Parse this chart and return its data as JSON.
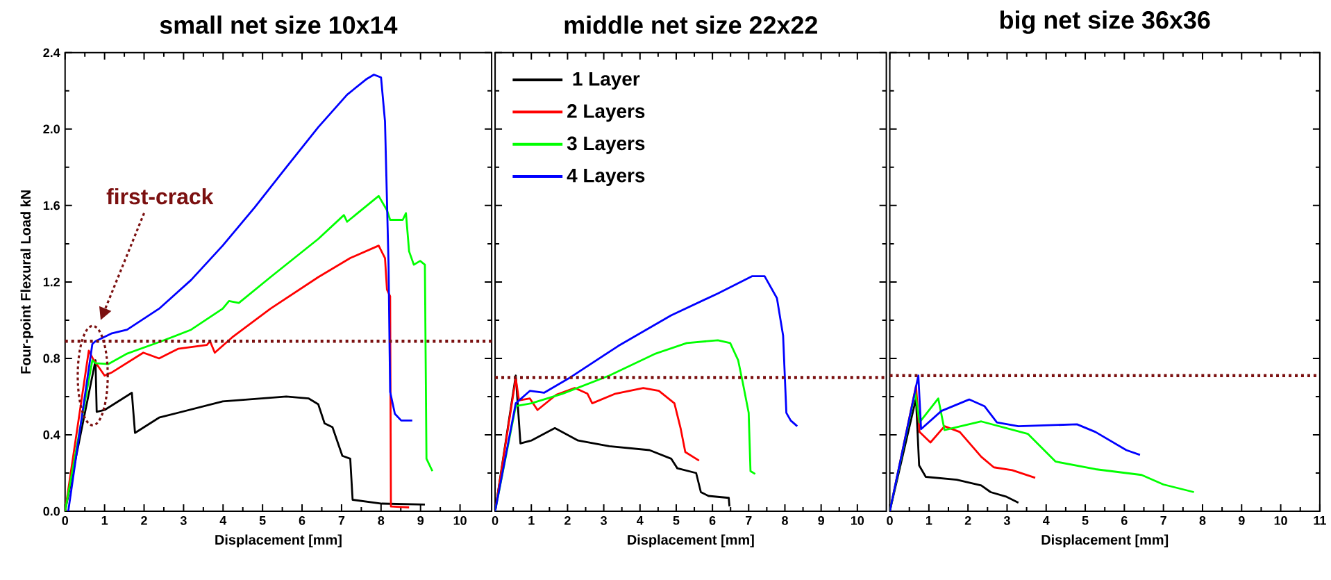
{
  "chart_data": [
    {
      "type": "line",
      "title": "small net size 10x14",
      "xlabel": "Displacement [mm]",
      "ylabel": "Four-point Flexural Load     kN",
      "marker": "none",
      "xlim": [
        0,
        10.8
      ],
      "ylim": [
        0,
        2.4
      ],
      "xticks": [
        0,
        1,
        2,
        3,
        4,
        5,
        6,
        7,
        8,
        9,
        10
      ],
      "yticks": [
        {
          "value": 0,
          "label": "0.0"
        },
        {
          "value": 0.4,
          "label": "0.4"
        },
        {
          "value": 0.8,
          "label": "0.8"
        },
        {
          "value": 1.2,
          "label": "1.2"
        },
        {
          "value": 1.6,
          "label": "1.6"
        },
        {
          "value": 2.0,
          "label": "2.0"
        },
        {
          "value": 2.4,
          "label": "2.4"
        }
      ],
      "ref_lines": [
        {
          "axis": "y",
          "value": 0.89,
          "color": "#7b1010",
          "line_style": "dotted"
        }
      ],
      "annotations": [
        "first-crack"
      ],
      "series": [
        {
          "color": "#000000",
          "x": [
            0,
            0.77,
            0.8,
            1.0,
            1.69,
            1.77,
            2.38,
            3.99,
            5.6,
            6.17,
            6.41,
            6.57,
            6.77,
            7.02,
            7.22,
            7.28,
            8.02,
            9.11
          ],
          "values": [
            0,
            0.79,
            0.52,
            0.53,
            0.62,
            0.41,
            0.49,
            0.575,
            0.6,
            0.59,
            0.56,
            0.46,
            0.44,
            0.29,
            0.275,
            0.06,
            0.04,
            0.035
          ]
        },
        {
          "color": "#ff0000",
          "x": [
            0,
            0.6,
            0.7,
            1.0,
            1.17,
            1.98,
            2.38,
            2.86,
            3.59,
            3.67,
            3.79,
            4.23,
            5.2,
            6.41,
            7.22,
            7.94,
            8.1,
            8.15,
            8.23,
            8.25,
            8.71
          ],
          "values": [
            0,
            0.84,
            0.8,
            0.71,
            0.725,
            0.83,
            0.8,
            0.85,
            0.87,
            0.89,
            0.83,
            0.91,
            1.06,
            1.225,
            1.325,
            1.39,
            1.325,
            1.16,
            1.125,
            0.025,
            0.02
          ]
        },
        {
          "color": "#00ff00",
          "x": [
            0,
            0.69,
            0.77,
            1.09,
            1.57,
            2.38,
            3.19,
            3.99,
            4.15,
            4.4,
            5.2,
            6.41,
            7.06,
            7.14,
            7.94,
            8.15,
            8.23,
            8.55,
            8.63,
            8.71,
            8.83,
            8.99,
            9.11,
            9.15,
            9.3
          ],
          "values": [
            0,
            0.79,
            0.775,
            0.77,
            0.825,
            0.885,
            0.95,
            1.06,
            1.1,
            1.09,
            1.225,
            1.425,
            1.55,
            1.515,
            1.65,
            1.575,
            1.525,
            1.525,
            1.56,
            1.36,
            1.29,
            1.31,
            1.29,
            0.275,
            0.21
          ]
        },
        {
          "color": "#0000ff",
          "x": [
            0.08,
            0.69,
            0.77,
            1.17,
            1.57,
            2.38,
            3.19,
            3.99,
            4.8,
            5.6,
            6.41,
            7.14,
            7.62,
            7.82,
            8.0,
            8.1,
            8.19,
            8.23,
            8.35,
            8.51,
            8.79
          ],
          "values": [
            0,
            0.875,
            0.89,
            0.93,
            0.95,
            1.06,
            1.21,
            1.39,
            1.59,
            1.8,
            2.01,
            2.18,
            2.26,
            2.285,
            2.27,
            2.04,
            1.29,
            0.625,
            0.51,
            0.475,
            0.475
          ]
        }
      ]
    },
    {
      "type": "line",
      "title": "middle net size 22x22",
      "xlabel": "Displacement [mm]",
      "marker": "none",
      "legend": "top left",
      "tick_labels": "x",
      "xlim": [
        0,
        10.8
      ],
      "ylim": [
        0,
        2.4
      ],
      "xticks": [
        0,
        1,
        2,
        3,
        4,
        5,
        6,
        7,
        8,
        9,
        10
      ],
      "yticks": [
        {
          "value": 0,
          "label": null
        },
        {
          "value": 0.4,
          "label": null
        },
        {
          "value": 0.8,
          "label": null
        },
        {
          "value": 1.2,
          "label": null
        },
        {
          "value": 1.6,
          "label": null
        },
        {
          "value": 2.0,
          "label": null
        },
        {
          "value": 2.4,
          "label": null
        }
      ],
      "ref_lines": [
        {
          "axis": "y",
          "value": 0.7,
          "color": "#7b1010",
          "line_style": "dotted"
        }
      ],
      "series": [
        {
          "name": "1 Layer",
          "color": "#000000",
          "x": [
            0,
            0.57,
            0.7,
            1.0,
            1.65,
            2.29,
            3.15,
            4.26,
            4.86,
            5.03,
            5.55,
            5.68,
            5.89,
            6.45,
            6.47
          ],
          "values": [
            0,
            0.71,
            0.355,
            0.37,
            0.435,
            0.37,
            0.34,
            0.32,
            0.275,
            0.225,
            0.2,
            0.1,
            0.08,
            0.07,
            0.025
          ]
        },
        {
          "name": "2 Layers",
          "color": "#ff0000",
          "x": [
            0,
            0.57,
            0.66,
            0.96,
            1.17,
            1.69,
            2.2,
            2.55,
            2.68,
            3.32,
            4.09,
            4.52,
            4.95,
            5.12,
            5.25,
            5.63
          ],
          "values": [
            0,
            0.695,
            0.58,
            0.59,
            0.53,
            0.61,
            0.645,
            0.615,
            0.565,
            0.615,
            0.645,
            0.63,
            0.565,
            0.435,
            0.31,
            0.265
          ]
        },
        {
          "name": "3 Layers",
          "color": "#00ff00",
          "x": [
            0,
            0.57,
            1.0,
            1.86,
            3.15,
            4.43,
            5.29,
            6.15,
            6.49,
            6.71,
            6.83,
            7.0,
            7.05,
            7.18
          ],
          "values": [
            0,
            0.55,
            0.565,
            0.615,
            0.71,
            0.825,
            0.88,
            0.895,
            0.88,
            0.79,
            0.68,
            0.515,
            0.21,
            0.195
          ]
        },
        {
          "name": "4 Layers",
          "color": "#0000ff",
          "x": [
            0,
            0.57,
            0.96,
            1.35,
            2.03,
            3.4,
            4.86,
            6.15,
            7.09,
            7.44,
            7.78,
            7.95,
            8.04,
            8.16,
            8.34
          ],
          "values": [
            0,
            0.565,
            0.63,
            0.62,
            0.695,
            0.865,
            1.025,
            1.14,
            1.23,
            1.23,
            1.115,
            0.92,
            0.515,
            0.475,
            0.445
          ]
        }
      ]
    },
    {
      "type": "line",
      "title": "big net size 36x36",
      "xlabel": "Displacement [mm]",
      "marker": "none",
      "tick_labels": "x",
      "xlim": [
        0,
        11
      ],
      "ylim": [
        0,
        2.4
      ],
      "xticks": [
        0,
        1,
        2,
        3,
        4,
        5,
        6,
        7,
        8,
        9,
        10,
        11
      ],
      "yticks": [
        {
          "value": 0,
          "label": null
        },
        {
          "value": 0.4,
          "label": null
        },
        {
          "value": 0.8,
          "label": null
        },
        {
          "value": 1.2,
          "label": null
        },
        {
          "value": 1.6,
          "label": null
        },
        {
          "value": 2.0,
          "label": null
        },
        {
          "value": 2.4,
          "label": null
        }
      ],
      "ref_lines": [
        {
          "axis": "y",
          "value": 0.71,
          "color": "#7b1010",
          "line_style": "dotted"
        }
      ],
      "series": [
        {
          "color": "#000000",
          "x": [
            0,
            0.67,
            0.75,
            0.92,
            1.71,
            2.34,
            2.58,
            2.97,
            3.29
          ],
          "values": [
            0,
            0.59,
            0.24,
            0.18,
            0.165,
            0.135,
            0.1,
            0.077,
            0.045
          ]
        },
        {
          "color": "#ff0000",
          "x": [
            0,
            0.67,
            0.76,
            1.04,
            1.4,
            1.79,
            2.34,
            2.66,
            3.13,
            3.72
          ],
          "values": [
            0,
            0.655,
            0.415,
            0.36,
            0.445,
            0.415,
            0.285,
            0.23,
            0.215,
            0.175
          ]
        },
        {
          "color": "#00ff00",
          "x": [
            0,
            0.65,
            0.76,
            1.24,
            1.4,
            2.34,
            3.53,
            4.24,
            5.26,
            6.44,
            7.0,
            7.78
          ],
          "values": [
            0,
            0.625,
            0.465,
            0.59,
            0.425,
            0.47,
            0.405,
            0.26,
            0.22,
            0.19,
            0.14,
            0.1
          ]
        },
        {
          "color": "#0000ff",
          "x": [
            0,
            0.73,
            0.8,
            1.32,
            2.03,
            2.42,
            2.74,
            3.29,
            4.79,
            5.26,
            6.05,
            6.4
          ],
          "values": [
            0,
            0.71,
            0.43,
            0.525,
            0.585,
            0.55,
            0.465,
            0.445,
            0.455,
            0.415,
            0.32,
            0.295
          ]
        }
      ]
    }
  ]
}
